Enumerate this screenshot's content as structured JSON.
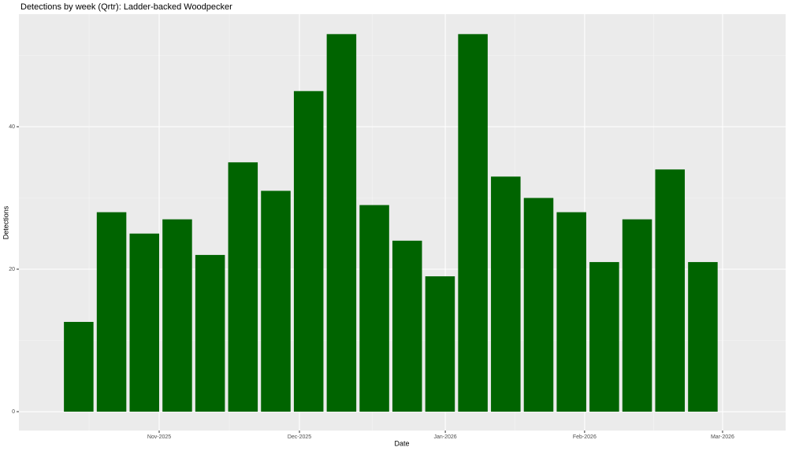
{
  "chart_data": {
    "type": "bar",
    "title": "Detections by week (Qrtr): Ladder-backed Woodpecker",
    "x_label": "Date",
    "y_label": "Detections",
    "categories": [
      null,
      null,
      null,
      null,
      null,
      null,
      null,
      null,
      null,
      null,
      null,
      null,
      null,
      null,
      null,
      null,
      null,
      null,
      null,
      null
    ],
    "values": [
      12.6,
      28,
      25,
      27,
      22,
      35,
      31,
      45,
      53,
      29,
      24,
      19,
      53,
      33,
      30,
      28,
      21,
      27,
      34,
      21
    ],
    "color": "#006400",
    "xlim": [
      -1.82,
      21.52
    ],
    "xticks": [
      {
        "value": 2.45,
        "label": "Nov-2025"
      },
      {
        "value": 6.72,
        "label": "Dec-2025"
      },
      {
        "value": 11.16,
        "label": "Jan-2026"
      },
      {
        "value": 15.4,
        "label": "Feb-2026"
      },
      {
        "value": 19.6,
        "label": "Mar-2026"
      }
    ],
    "ylim": [
      -2.65,
      55.8
    ],
    "yticks": [
      0,
      20,
      40
    ],
    "grid": true
  }
}
